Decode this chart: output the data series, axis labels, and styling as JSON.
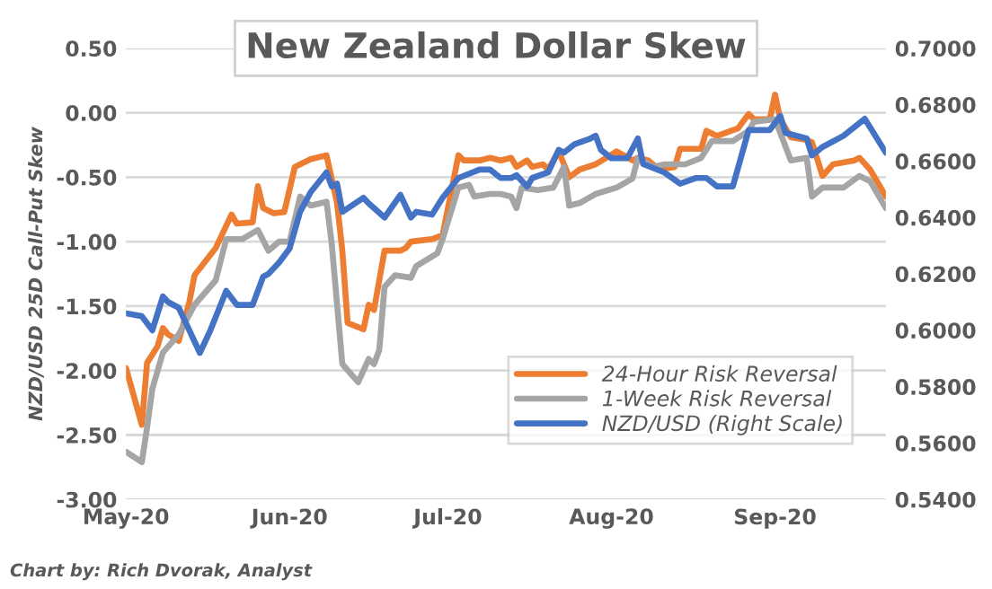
{
  "chart_data": {
    "type": "line",
    "title": "New Zealand Dollar Skew",
    "ylabel": "NZD/USD 25D Call-Put Skew",
    "annotations": [
      "Chart by: Rich Dvorak, Analyst"
    ],
    "xlim": [
      "2020-05-01",
      "2020-09-22"
    ],
    "xticks": [
      {
        "value": "2020-05-01",
        "label": "May-20"
      },
      {
        "value": "2020-06-01",
        "label": "Jun-20"
      },
      {
        "value": "2020-07-01",
        "label": "Jul-20"
      },
      {
        "value": "2020-08-01",
        "label": "Aug-20"
      },
      {
        "value": "2020-09-01",
        "label": "Sep-20"
      }
    ],
    "ylim": [
      -3,
      0.5
    ],
    "yticks": [
      {
        "value": -3,
        "label": "-3.00"
      },
      {
        "value": -2.5,
        "label": "-2.50"
      },
      {
        "value": -2,
        "label": "-2.00"
      },
      {
        "value": -1.5,
        "label": "-1.50"
      },
      {
        "value": -1,
        "label": "-1.00"
      },
      {
        "value": -0.5,
        "label": "-0.50"
      },
      {
        "value": 0,
        "label": "0.00"
      },
      {
        "value": 0.5,
        "label": "0.50"
      }
    ],
    "y2lim": [
      0.54,
      0.7
    ],
    "y2ticks": [
      {
        "value": 0.54,
        "label": "0.5400"
      },
      {
        "value": 0.56,
        "label": "0.5600"
      },
      {
        "value": 0.58,
        "label": "0.5800"
      },
      {
        "value": 0.6,
        "label": "0.6000"
      },
      {
        "value": 0.62,
        "label": "0.6200"
      },
      {
        "value": 0.64,
        "label": "0.6400"
      },
      {
        "value": 0.66,
        "label": "0.6600"
      },
      {
        "value": 0.68,
        "label": "0.6800"
      },
      {
        "value": 0.7,
        "label": "0.7000"
      }
    ],
    "grid": "y",
    "legend": "bottom right",
    "marker": "none",
    "line_style": "solid",
    "series": [
      {
        "name": "24-Hour Risk Reversal",
        "color": "#ed7d31",
        "x": [
          "2020-05-01",
          "2020-05-04",
          "2020-05-05",
          "2020-05-07",
          "2020-05-08",
          "2020-05-09",
          "2020-05-11",
          "2020-05-13",
          "2020-05-14",
          "2020-05-18",
          "2020-05-21",
          "2020-05-22",
          "2020-05-25",
          "2020-05-26",
          "2020-05-27",
          "2020-05-29",
          "2020-05-31",
          "2020-06-02",
          "2020-06-03",
          "2020-06-05",
          "2020-06-08",
          "2020-06-10",
          "2020-06-11",
          "2020-06-12",
          "2020-06-15",
          "2020-06-16",
          "2020-06-17",
          "2020-06-19",
          "2020-06-22",
          "2020-06-23",
          "2020-06-24",
          "2020-06-28",
          "2020-06-30",
          "2020-07-03",
          "2020-07-04",
          "2020-07-07",
          "2020-07-09",
          "2020-07-11",
          "2020-07-13",
          "2020-07-14",
          "2020-07-16",
          "2020-07-17",
          "2020-07-19",
          "2020-07-20",
          "2020-07-22",
          "2020-07-24",
          "2020-07-26",
          "2020-07-29",
          "2020-08-02",
          "2020-08-05",
          "2020-08-06",
          "2020-08-08",
          "2020-08-10",
          "2020-08-13",
          "2020-08-14",
          "2020-08-18",
          "2020-08-19",
          "2020-08-21",
          "2020-08-25",
          "2020-08-27",
          "2020-08-28",
          "2020-08-31",
          "2020-09-01",
          "2020-09-02",
          "2020-09-04",
          "2020-09-07",
          "2020-09-08",
          "2020-09-10",
          "2020-09-12",
          "2020-09-16",
          "2020-09-17",
          "2020-09-19",
          "2020-09-22"
        ],
        "values": [
          -1.98,
          -2.42,
          -1.94,
          -1.81,
          -1.67,
          -1.72,
          -1.77,
          -1.47,
          -1.26,
          -1.05,
          -0.79,
          -0.86,
          -0.85,
          -0.57,
          -0.74,
          -0.78,
          -0.77,
          -0.42,
          -0.4,
          -0.36,
          -0.33,
          -0.7,
          -1.07,
          -1.63,
          -1.68,
          -1.49,
          -1.53,
          -1.07,
          -1.07,
          -1.05,
          -1.0,
          -0.98,
          -0.95,
          -0.33,
          -0.37,
          -0.37,
          -0.35,
          -0.37,
          -0.35,
          -0.42,
          -0.37,
          -0.42,
          -0.4,
          -0.44,
          -0.3,
          -0.5,
          -0.44,
          -0.4,
          -0.3,
          -0.37,
          -0.35,
          -0.37,
          -0.44,
          -0.42,
          -0.28,
          -0.28,
          -0.14,
          -0.18,
          -0.12,
          -0.01,
          -0.05,
          -0.05,
          0.14,
          -0.05,
          -0.19,
          -0.21,
          -0.23,
          -0.49,
          -0.4,
          -0.37,
          -0.35,
          -0.44,
          -0.65
        ]
      },
      {
        "name": "1-Week Risk Reversal",
        "color": "#a5a5a5",
        "x": [
          "2020-05-01",
          "2020-05-04",
          "2020-05-05",
          "2020-05-06",
          "2020-05-08",
          "2020-05-11",
          "2020-05-14",
          "2020-05-18",
          "2020-05-20",
          "2020-05-23",
          "2020-05-26",
          "2020-05-28",
          "2020-05-30",
          "2020-06-01",
          "2020-06-03",
          "2020-06-05",
          "2020-06-08",
          "2020-06-09",
          "2020-06-11",
          "2020-06-14",
          "2020-06-16",
          "2020-06-17",
          "2020-06-18",
          "2020-06-19",
          "2020-06-21",
          "2020-06-24",
          "2020-06-25",
          "2020-06-29",
          "2020-06-30",
          "2020-07-03",
          "2020-07-05",
          "2020-07-06",
          "2020-07-09",
          "2020-07-11",
          "2020-07-13",
          "2020-07-14",
          "2020-07-15",
          "2020-07-18",
          "2020-07-21",
          "2020-07-23",
          "2020-07-24",
          "2020-07-26",
          "2020-07-29",
          "2020-08-02",
          "2020-08-05",
          "2020-08-06",
          "2020-08-09",
          "2020-08-11",
          "2020-08-15",
          "2020-08-18",
          "2020-08-20",
          "2020-08-24",
          "2020-08-27",
          "2020-08-28",
          "2020-09-01",
          "2020-09-04",
          "2020-09-07",
          "2020-09-08",
          "2020-09-10",
          "2020-09-14",
          "2020-09-17",
          "2020-09-19",
          "2020-09-22"
        ],
        "values": [
          -2.63,
          -2.71,
          -2.44,
          -2.14,
          -1.86,
          -1.72,
          -1.49,
          -1.3,
          -0.98,
          -0.98,
          -0.91,
          -1.07,
          -1.0,
          -1.0,
          -0.65,
          -0.72,
          -0.69,
          -1.02,
          -1.95,
          -2.09,
          -1.91,
          -1.95,
          -1.84,
          -1.35,
          -1.26,
          -1.28,
          -1.19,
          -1.09,
          -0.98,
          -0.58,
          -0.56,
          -0.65,
          -0.63,
          -0.63,
          -0.65,
          -0.74,
          -0.58,
          -0.6,
          -0.58,
          -0.42,
          -0.72,
          -0.7,
          -0.63,
          -0.58,
          -0.51,
          -0.35,
          -0.42,
          -0.4,
          -0.4,
          -0.35,
          -0.22,
          -0.22,
          -0.14,
          -0.07,
          -0.05,
          -0.37,
          -0.35,
          -0.65,
          -0.58,
          -0.58,
          -0.49,
          -0.53,
          -0.74
        ]
      },
      {
        "name": "NZD/USD (Right Scale)",
        "color": "#4472c4",
        "axis": "y2",
        "x": [
          "2020-05-01",
          "2020-05-04",
          "2020-05-06",
          "2020-05-08",
          "2020-05-09",
          "2020-05-11",
          "2020-05-13",
          "2020-05-15",
          "2020-05-17",
          "2020-05-20",
          "2020-05-22",
          "2020-05-25",
          "2020-05-27",
          "2020-05-28",
          "2020-05-30",
          "2020-06-01",
          "2020-06-03",
          "2020-06-05",
          "2020-06-08",
          "2020-06-09",
          "2020-06-10",
          "2020-06-11",
          "2020-06-15",
          "2020-06-16",
          "2020-06-19",
          "2020-06-22",
          "2020-06-24",
          "2020-06-25",
          "2020-06-28",
          "2020-06-30",
          "2020-07-03",
          "2020-07-07",
          "2020-07-09",
          "2020-07-11",
          "2020-07-13",
          "2020-07-14",
          "2020-07-16",
          "2020-07-17",
          "2020-07-20",
          "2020-07-22",
          "2020-07-23",
          "2020-07-25",
          "2020-07-28",
          "2020-07-29",
          "2020-07-30",
          "2020-08-01",
          "2020-08-04",
          "2020-08-06",
          "2020-08-07",
          "2020-08-11",
          "2020-08-14",
          "2020-08-17",
          "2020-08-19",
          "2020-08-21",
          "2020-08-24",
          "2020-08-27",
          "2020-08-31",
          "2020-09-02",
          "2020-09-03",
          "2020-09-07",
          "2020-09-08",
          "2020-09-10",
          "2020-09-14",
          "2020-09-18",
          "2020-09-22"
        ],
        "values": [
          0.606,
          0.605,
          0.6,
          0.612,
          0.61,
          0.608,
          0.6,
          0.592,
          0.6,
          0.614,
          0.609,
          0.609,
          0.619,
          0.62,
          0.624,
          0.629,
          0.642,
          0.649,
          0.656,
          0.651,
          0.652,
          0.642,
          0.647,
          0.645,
          0.64,
          0.648,
          0.64,
          0.642,
          0.641,
          0.647,
          0.654,
          0.657,
          0.657,
          0.654,
          0.654,
          0.655,
          0.651,
          0.654,
          0.656,
          0.664,
          0.663,
          0.666,
          0.668,
          0.669,
          0.664,
          0.661,
          0.661,
          0.668,
          0.659,
          0.656,
          0.652,
          0.654,
          0.654,
          0.651,
          0.651,
          0.671,
          0.671,
          0.676,
          0.67,
          0.668,
          0.662,
          0.665,
          0.669,
          0.675,
          0.663
        ]
      }
    ]
  }
}
